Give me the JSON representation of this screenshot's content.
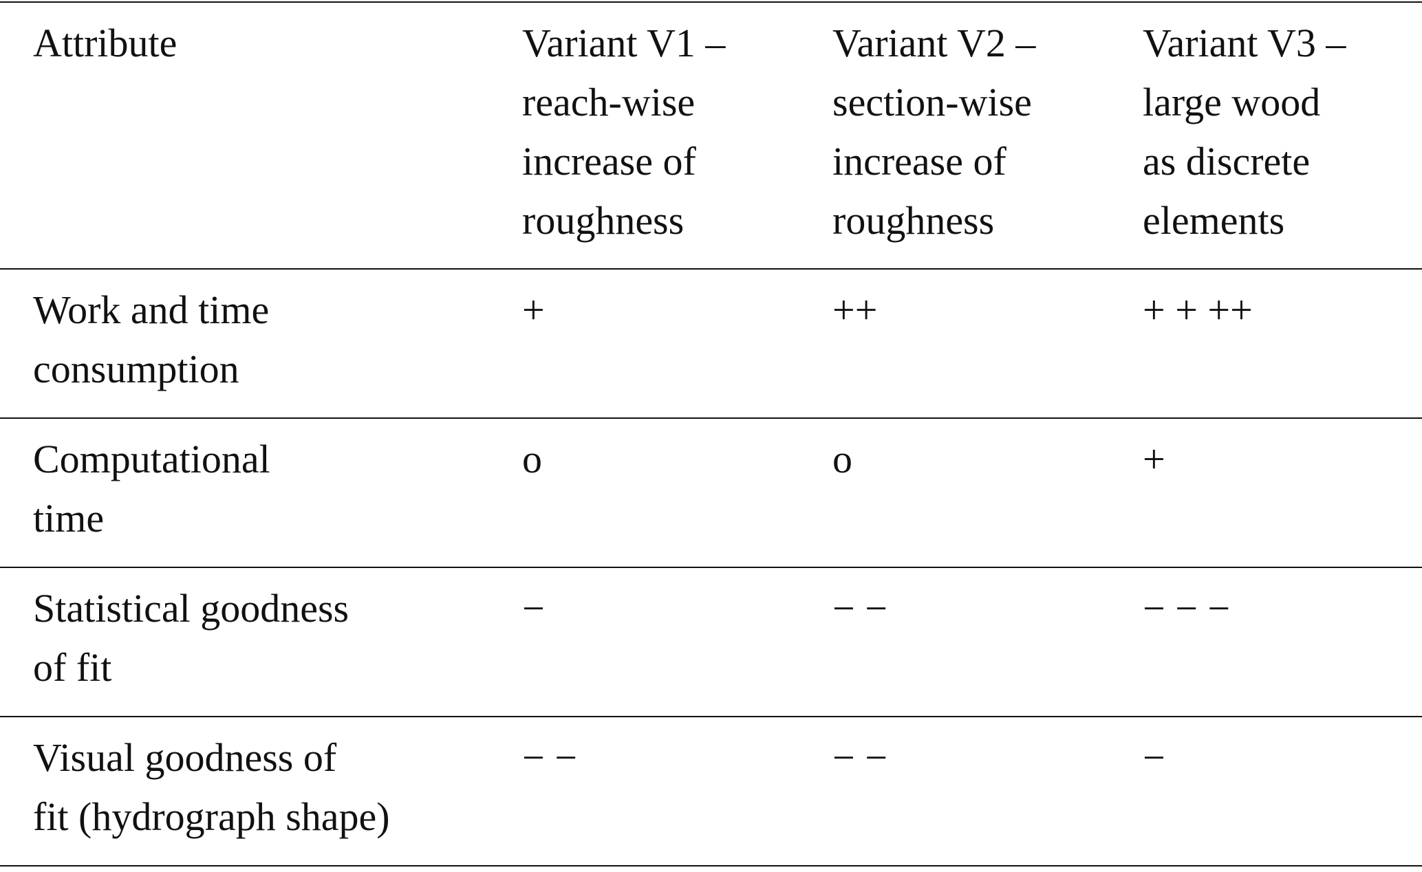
{
  "table": {
    "header": [
      [
        "Attribute"
      ],
      [
        "Variant V1 –",
        "reach-wise",
        "increase of",
        "roughness"
      ],
      [
        "Variant V2 –",
        "section-wise",
        "increase of",
        "roughness"
      ],
      [
        "Variant V3 –",
        "large wood",
        "as discrete",
        "elements"
      ]
    ],
    "rows": [
      [
        [
          "Work and time",
          "consumption"
        ],
        [
          "+"
        ],
        [
          "++"
        ],
        [
          "+ + ++"
        ]
      ],
      [
        [
          "Computational",
          "time"
        ],
        [
          "o"
        ],
        [
          "o"
        ],
        [
          "+"
        ]
      ],
      [
        [
          "Statistical goodness",
          "of fit"
        ],
        [
          "−"
        ],
        [
          "− −"
        ],
        [
          "− − −"
        ]
      ],
      [
        [
          "Visual goodness of",
          "fit (hydrograph shape)"
        ],
        [
          "− −"
        ],
        [
          "− −"
        ],
        [
          "−"
        ]
      ]
    ]
  }
}
